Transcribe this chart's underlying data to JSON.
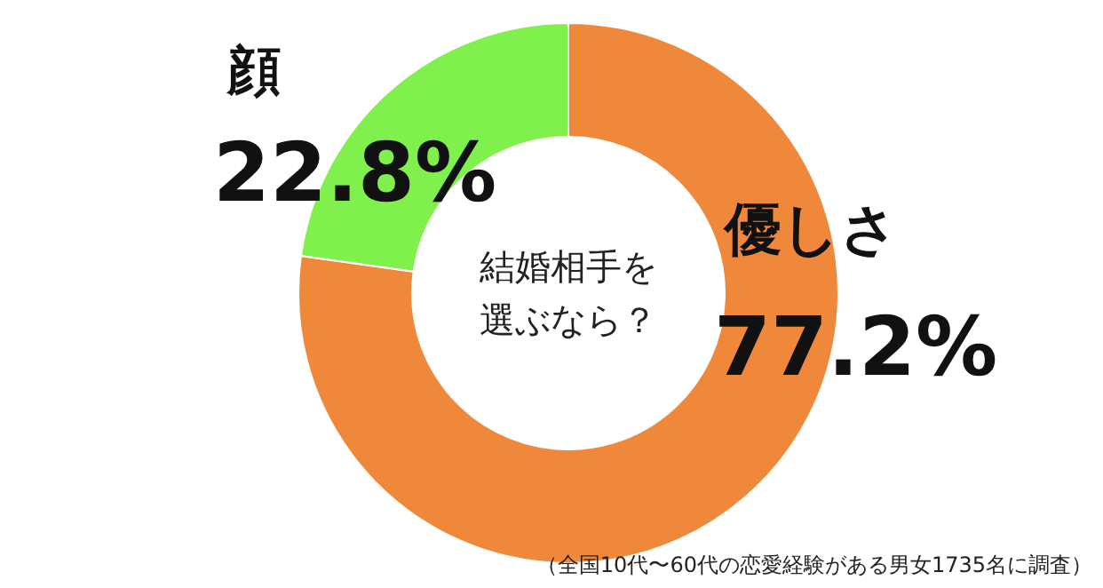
{
  "chart_data": {
    "type": "donut",
    "title": "結婚相手を選ぶなら？",
    "categories": [
      "優しさ",
      "顔"
    ],
    "values": [
      77.2,
      22.8
    ],
    "colors": [
      "#f0883c",
      "#80f04c"
    ],
    "value_labels": [
      "77.2%",
      "22.8%"
    ],
    "annotations": [
      "（全国10代〜60代の恋愛経験がある男女1735名に調査）"
    ]
  }
}
